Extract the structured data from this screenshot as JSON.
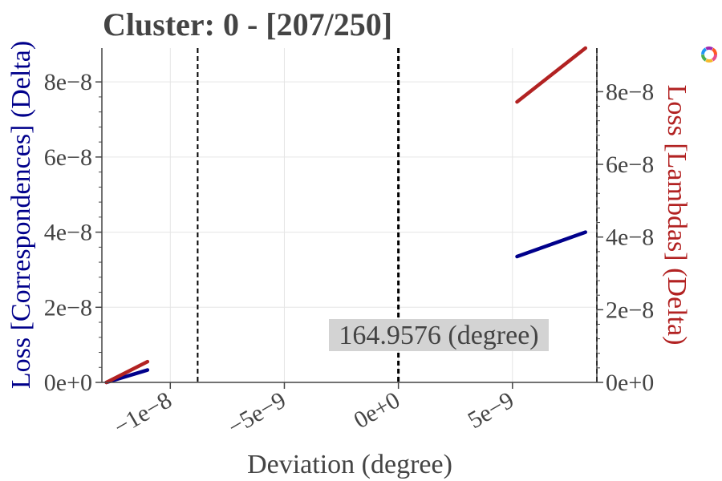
{
  "chart_data": {
    "type": "line",
    "title": "Cluster: 0 - [207/250]",
    "xlabel": "Deviation (degree)",
    "ylabel_left": "Loss [Correspondences] (Delta)",
    "ylabel_right": "Loss [Lambdas] (Delta)",
    "xlim": [
      -1.3e-08,
      8.7e-09
    ],
    "ylim_left": [
      0,
      8.9e-08
    ],
    "ylim_right": [
      0,
      9.2e-08
    ],
    "x_ticks": [
      {
        "value": -1e-08,
        "label": "−1e−8"
      },
      {
        "value": -5e-09,
        "label": "−5e−9"
      },
      {
        "value": 0,
        "label": "0e+0"
      },
      {
        "value": 5e-09,
        "label": "5e−9"
      }
    ],
    "y_ticks_left": [
      {
        "value": 0,
        "label": "0e+0"
      },
      {
        "value": 2e-08,
        "label": "2e−8"
      },
      {
        "value": 4e-08,
        "label": "4e−8"
      },
      {
        "value": 6e-08,
        "label": "6e−8"
      },
      {
        "value": 8e-08,
        "label": "8e−8"
      }
    ],
    "y_ticks_right": [
      {
        "value": 0,
        "label": "0e+0"
      },
      {
        "value": 2e-08,
        "label": "2e−8"
      },
      {
        "value": 4e-08,
        "label": "4e−8"
      },
      {
        "value": 6e-08,
        "label": "6e−8"
      },
      {
        "value": 8e-08,
        "label": "8e−8"
      }
    ],
    "grid": true,
    "series": [
      {
        "axis": "left",
        "color": "#00008b",
        "segments": [
          {
            "x": [
              -1.28e-08,
              -1.1e-08
            ],
            "y": [
              0,
              3.3e-09
            ]
          },
          {
            "x": [
              5.2e-09,
              8.2e-09
            ],
            "y": [
              3.35e-08,
              4e-08
            ]
          }
        ]
      },
      {
        "axis": "right",
        "color": "#b22222",
        "segments": [
          {
            "x": [
              -1.28e-08,
              -1.1e-08
            ],
            "y": [
              0,
              5.7e-09
            ]
          },
          {
            "x": [
              5.2e-09,
              8.2e-09
            ],
            "y": [
              7.72e-08,
              9.2e-08
            ]
          }
        ]
      }
    ],
    "vlines": [
      -8.8e-09,
      0,
      8.7e-09
    ],
    "annotation": "164.9576 (degree)"
  },
  "colors": {
    "left_axis_label": "#00008b",
    "right_axis_label": "#b22222",
    "text": "#444444",
    "grid": "#e5e5e5",
    "annotation_bg": "#d3d3d3"
  },
  "toolbar": {
    "icon": "plotly-logo-icon"
  }
}
